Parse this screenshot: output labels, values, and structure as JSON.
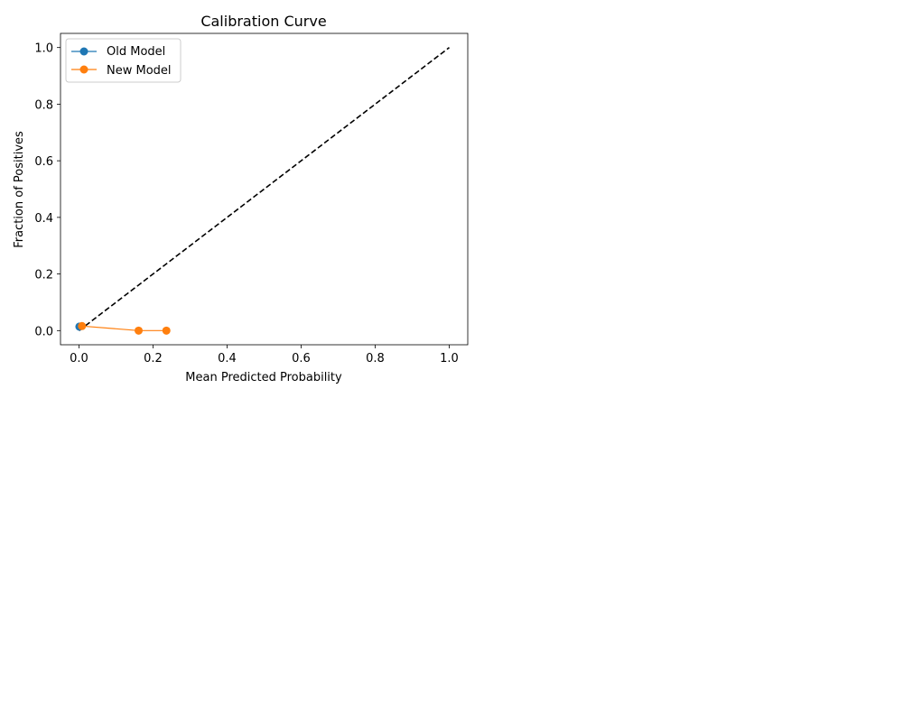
{
  "chart_data": {
    "type": "line",
    "title": "Calibration Curve",
    "xlabel": "Mean Predicted Probability",
    "ylabel": "Fraction of Positives",
    "xlim": [
      -0.05,
      1.05
    ],
    "ylim": [
      -0.05,
      1.05
    ],
    "xticks": [
      0.0,
      0.2,
      0.4,
      0.6,
      0.8,
      1.0
    ],
    "xtick_labels": [
      "0.0",
      "0.2",
      "0.4",
      "0.6",
      "0.8",
      "1.0"
    ],
    "yticks": [
      0.0,
      0.2,
      0.4,
      0.6,
      0.8,
      1.0
    ],
    "ytick_labels": [
      "0.0",
      "0.2",
      "0.4",
      "0.6",
      "0.8",
      "1.0"
    ],
    "grid": false,
    "legend_position": "upper-left",
    "reference_line": {
      "x": [
        0,
        1
      ],
      "y": [
        0,
        1
      ],
      "color": "#000000",
      "style": "dashed"
    },
    "series": [
      {
        "name": "Old Model",
        "color": "#1f77b4",
        "marker": "circle",
        "x": [
          0.001
        ],
        "y": [
          0.014
        ]
      },
      {
        "name": "New Model",
        "color": "#ff7f0e",
        "marker": "circle",
        "x": [
          0.008,
          0.161,
          0.236
        ],
        "y": [
          0.016,
          0.0,
          0.0
        ]
      }
    ]
  }
}
